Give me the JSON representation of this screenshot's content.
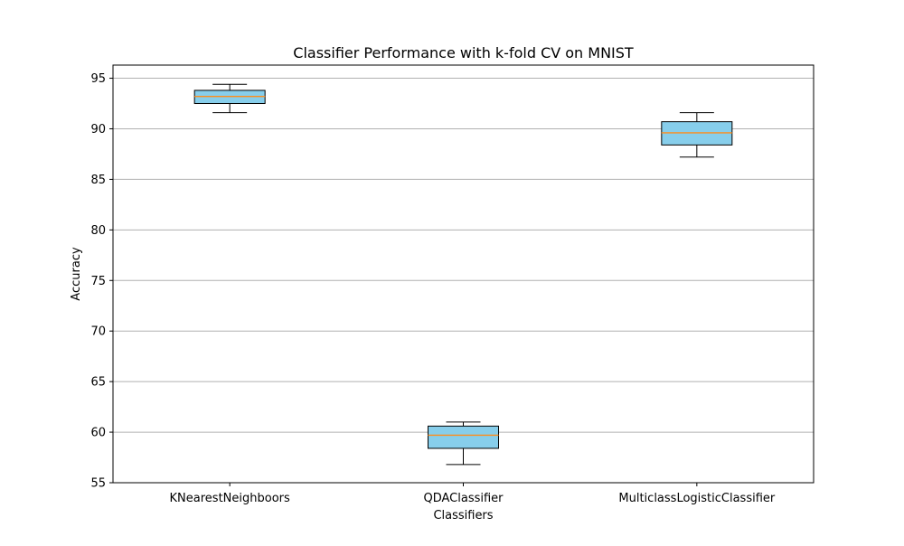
{
  "chart_data": {
    "type": "box",
    "title": "Classifier Performance with k-fold CV on MNIST",
    "xlabel": "Classifiers",
    "ylabel": "Accuracy",
    "ylim": [
      55,
      96.3
    ],
    "yticks": [
      55,
      60,
      65,
      70,
      75,
      80,
      85,
      90,
      95
    ],
    "grid": "y-axis",
    "categories": [
      "KNearestNeighboors",
      "QDAClassifier",
      "MulticlassLogisticClassifier"
    ],
    "boxes": [
      {
        "category": "KNearestNeighboors",
        "whisker_low": 91.6,
        "q1": 92.5,
        "median": 93.2,
        "q3": 93.8,
        "whisker_high": 94.4
      },
      {
        "category": "QDAClassifier",
        "whisker_low": 56.8,
        "q1": 58.4,
        "median": 59.7,
        "q3": 60.6,
        "whisker_high": 61.0
      },
      {
        "category": "MulticlassLogisticClassifier",
        "whisker_low": 87.2,
        "q1": 88.4,
        "median": 89.6,
        "q3": 90.7,
        "whisker_high": 91.6
      }
    ],
    "colors": {
      "box_fill": "#87ceeb",
      "box_edge": "#000000",
      "median": "#ff8c1a",
      "grid": "#b0b0b0"
    }
  }
}
